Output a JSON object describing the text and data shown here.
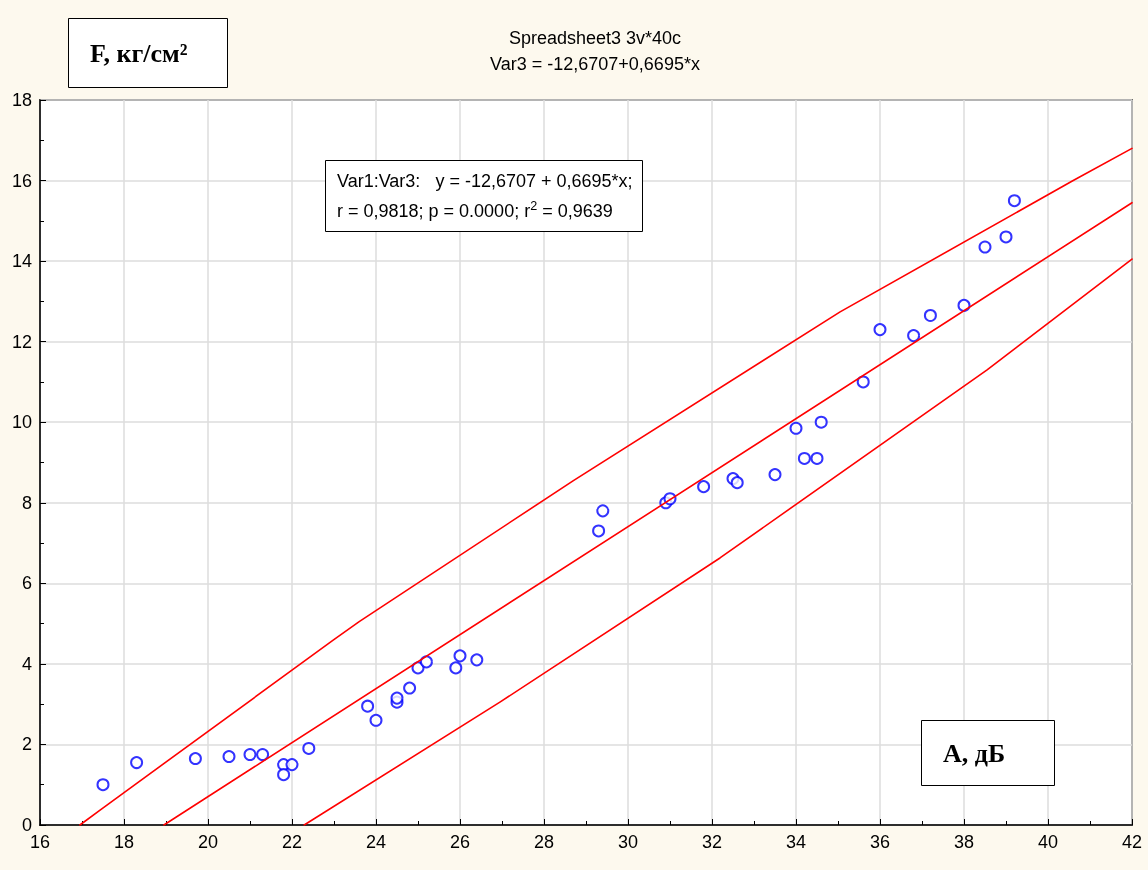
{
  "chart_data": {
    "type": "scatter",
    "title": "Spreadsheet3 3v*40c",
    "subtitle": "Var3 = -12,6707+0,6695*x",
    "xlabel": "A, дБ",
    "ylabel": "F, кг/см²",
    "annotations": [
      "Var1:Var3:   y = -12,6707 + 0,6695*x;",
      "r = 0,9818; p = 0.0000; r$^{2}$ = 0,9639"
    ],
    "xlim": [
      16,
      42
    ],
    "xticks": [
      16,
      18,
      20,
      22,
      24,
      26,
      28,
      30,
      32,
      34,
      36,
      38,
      40,
      42
    ],
    "ylim": [
      0,
      18
    ],
    "yticks": [
      0,
      2,
      4,
      6,
      8,
      10,
      12,
      14,
      16,
      18
    ],
    "grid": true,
    "marker": "circle",
    "series": [
      {
        "color": "#0000ff",
        "x": [
          17.5,
          18.3,
          19.7,
          20.5,
          21.0,
          21.3,
          21.8,
          21.8,
          22.0,
          22.4,
          23.8,
          24.0,
          24.5,
          24.5,
          24.8,
          25.0,
          25.2,
          25.9,
          26.0,
          26.4,
          29.3,
          29.4,
          30.9,
          31.0,
          31.8,
          32.5,
          32.6,
          33.5,
          34.0,
          34.2,
          34.5,
          34.6,
          35.6,
          36.0,
          36.8,
          37.2,
          38.0,
          38.5,
          39.0,
          39.2
        ],
        "values": [
          1.0,
          1.55,
          1.65,
          1.7,
          1.75,
          1.75,
          1.5,
          1.25,
          1.5,
          1.9,
          2.95,
          2.6,
          3.05,
          3.15,
          3.4,
          3.9,
          4.05,
          3.9,
          4.2,
          4.1,
          7.3,
          7.8,
          8.0,
          8.1,
          8.4,
          8.6,
          8.5,
          8.7,
          9.85,
          9.1,
          9.1,
          10.0,
          11.0,
          12.3,
          12.15,
          12.65,
          12.9,
          14.35,
          14.6,
          15.5
        ]
      },
      {
        "type": "line",
        "marker": "none",
        "color": "#ff0000",
        "x": [
          18.95,
          42
        ],
        "values": [
          0,
          15.45
        ]
      },
      {
        "type": "line",
        "marker": "none",
        "color": "#ff0000",
        "x": [
          16.95,
          17.43,
          22.98,
          23.6,
          28.7,
          35.05,
          40.6,
          42
        ],
        "values": [
          0,
          0.37,
          4.59,
          5.05,
          8.55,
          12.74,
          16.0,
          16.8
        ]
      },
      {
        "type": "line",
        "marker": "none",
        "color": "#ff0000",
        "x": [
          22.29,
          26.95,
          32.19,
          38.55,
          42
        ],
        "values": [
          0,
          3.05,
          6.63,
          11.3,
          14.05
        ]
      }
    ]
  }
}
